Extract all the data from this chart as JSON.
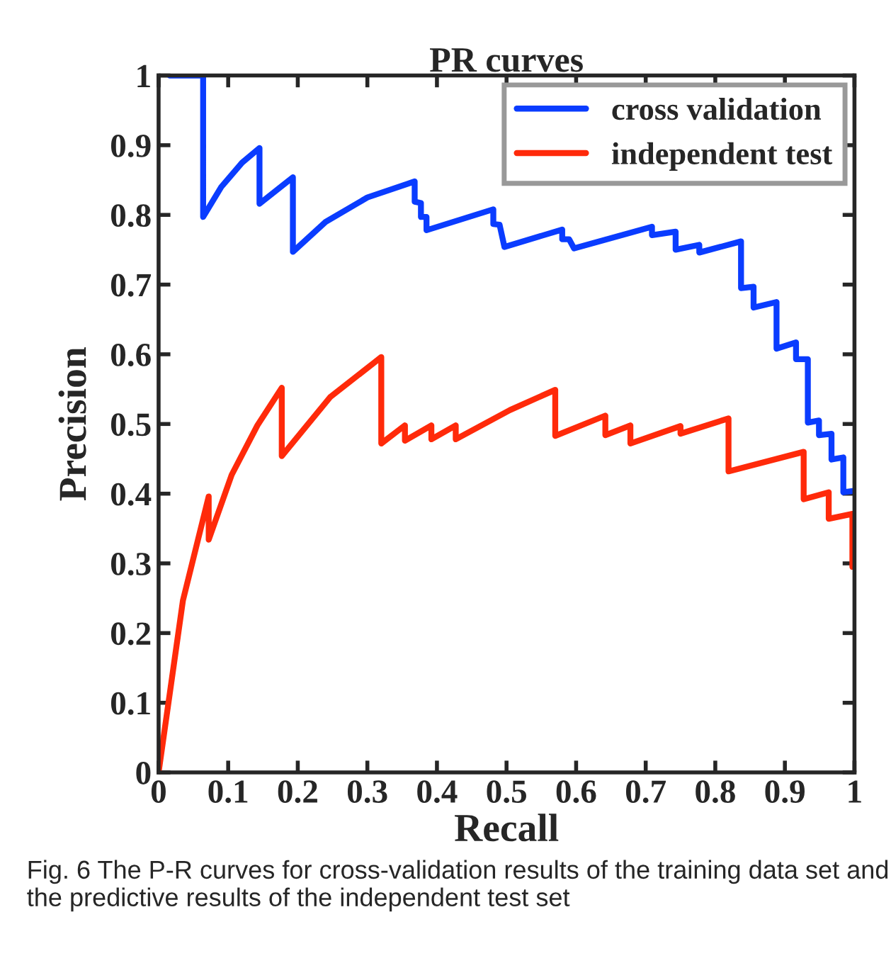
{
  "chart_data": {
    "type": "line",
    "title": "PR curves",
    "xlabel": "Recall",
    "ylabel": "Precision",
    "xlim": [
      0,
      1
    ],
    "ylim": [
      0,
      1
    ],
    "xticks": [
      0,
      0.1,
      0.2,
      0.3,
      0.4,
      0.5,
      0.6,
      0.7,
      0.8,
      0.9,
      1
    ],
    "yticks": [
      0,
      0.1,
      0.2,
      0.3,
      0.4,
      0.5,
      0.6,
      0.7,
      0.8,
      0.9,
      1
    ],
    "grid": false,
    "legend": "top right",
    "marker": "none",
    "line_style": "solid",
    "series": [
      {
        "name": "cross validation",
        "color": "#0a3cff",
        "x": [
          0.016,
          0.064,
          0.064,
          0.09,
          0.12,
          0.145,
          0.145,
          0.193,
          0.193,
          0.24,
          0.3,
          0.368,
          0.368,
          0.377,
          0.377,
          0.385,
          0.385,
          0.481,
          0.481,
          0.49,
          0.497,
          0.58,
          0.58,
          0.59,
          0.597,
          0.709,
          0.709,
          0.743,
          0.743,
          0.777,
          0.777,
          0.837,
          0.837,
          0.855,
          0.855,
          0.888,
          0.888,
          0.916,
          0.916,
          0.933,
          0.933,
          0.949,
          0.949,
          0.967,
          0.967,
          0.984,
          0.984,
          1.0
        ],
        "values": [
          1.0,
          1.0,
          0.797,
          0.84,
          0.875,
          0.896,
          0.816,
          0.854,
          0.747,
          0.79,
          0.825,
          0.848,
          0.819,
          0.817,
          0.797,
          0.797,
          0.778,
          0.808,
          0.787,
          0.786,
          0.754,
          0.779,
          0.765,
          0.765,
          0.752,
          0.783,
          0.771,
          0.776,
          0.75,
          0.757,
          0.746,
          0.762,
          0.695,
          0.697,
          0.667,
          0.675,
          0.608,
          0.617,
          0.593,
          0.593,
          0.502,
          0.505,
          0.484,
          0.486,
          0.449,
          0.452,
          0.402,
          0.404
        ]
      },
      {
        "name": "independent test",
        "color": "#ff2a0a",
        "x": [
          0,
          0.035,
          0.072,
          0.072,
          0.105,
          0.142,
          0.177,
          0.177,
          0.247,
          0.32,
          0.32,
          0.354,
          0.354,
          0.392,
          0.392,
          0.427,
          0.427,
          0.505,
          0.57,
          0.57,
          0.642,
          0.642,
          0.678,
          0.678,
          0.75,
          0.75,
          0.819,
          0.819,
          0.927,
          0.927,
          0.963,
          0.963,
          0.997,
          0.997
        ],
        "values": [
          0,
          0.247,
          0.396,
          0.334,
          0.427,
          0.498,
          0.552,
          0.454,
          0.539,
          0.596,
          0.472,
          0.498,
          0.476,
          0.498,
          0.478,
          0.498,
          0.478,
          0.52,
          0.549,
          0.483,
          0.512,
          0.484,
          0.498,
          0.472,
          0.497,
          0.486,
          0.508,
          0.432,
          0.46,
          0.392,
          0.402,
          0.364,
          0.371,
          0.295
        ]
      }
    ],
    "annotations": [
      "Fig. 6 The P-R curves for cross-validation results of the training data set and the predictive results of the independent test set"
    ]
  }
}
